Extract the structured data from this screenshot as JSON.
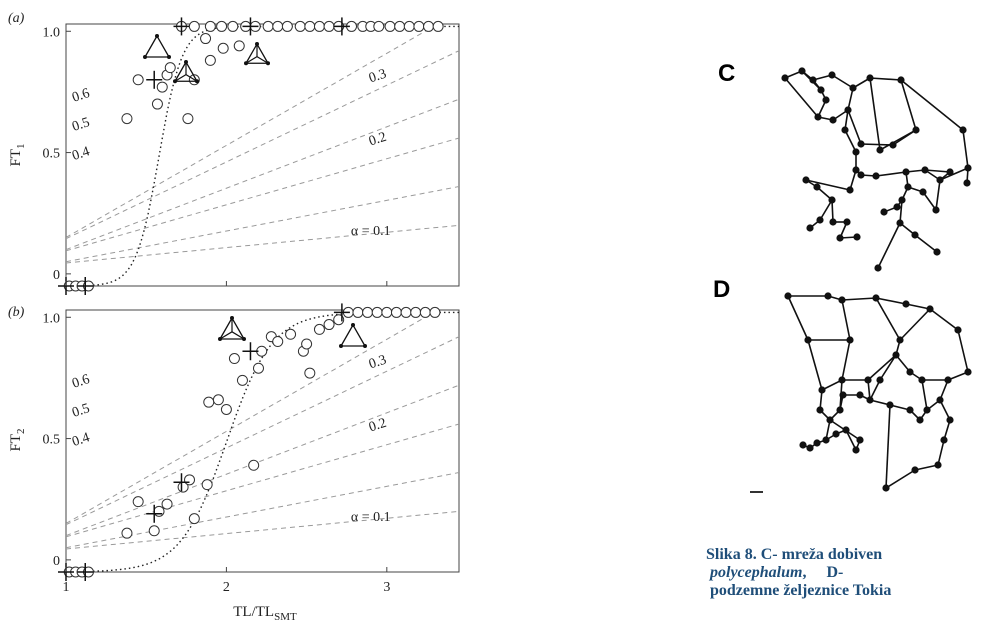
{
  "chart_data": [
    {
      "type": "scatter",
      "panel_label": "(a)",
      "ylabel": "FT",
      "ylabel_sub": "1",
      "yticks": [
        "0",
        "0.5",
        "1.0"
      ],
      "xticks": [
        "1",
        "2",
        "3"
      ],
      "xlim": [
        1.0,
        3.45
      ],
      "ylim": [
        -0.05,
        1.03
      ],
      "alpha_labels": [
        "0.6",
        "0.5",
        "0.4",
        "0.3",
        "0.2",
        "α = 0.1"
      ],
      "alphas": [
        0.6,
        0.5,
        0.4,
        0.3,
        0.2,
        0.1
      ],
      "circles": [
        [
          1.02,
          -0.05
        ],
        [
          1.06,
          -0.05
        ],
        [
          1.1,
          -0.05
        ],
        [
          1.14,
          -0.05
        ],
        [
          1.38,
          0.64
        ],
        [
          1.45,
          0.8
        ],
        [
          1.57,
          0.7
        ],
        [
          1.6,
          0.77
        ],
        [
          1.63,
          0.82
        ],
        [
          1.65,
          0.85
        ],
        [
          1.76,
          0.64
        ],
        [
          1.8,
          0.8
        ],
        [
          1.87,
          0.97
        ],
        [
          1.9,
          0.88
        ],
        [
          1.98,
          0.93
        ],
        [
          2.08,
          0.94
        ],
        [
          1.72,
          1.02
        ],
        [
          1.8,
          1.02
        ],
        [
          1.9,
          1.02
        ],
        [
          1.97,
          1.02
        ],
        [
          2.04,
          1.02
        ],
        [
          2.12,
          1.02
        ],
        [
          2.18,
          1.02
        ],
        [
          2.26,
          1.02
        ],
        [
          2.32,
          1.02
        ],
        [
          2.38,
          1.02
        ],
        [
          2.46,
          1.02
        ],
        [
          2.52,
          1.02
        ],
        [
          2.58,
          1.02
        ],
        [
          2.64,
          1.02
        ],
        [
          2.7,
          1.02
        ],
        [
          2.78,
          1.02
        ],
        [
          2.85,
          1.02
        ],
        [
          2.9,
          1.02
        ],
        [
          2.95,
          1.02
        ],
        [
          3.02,
          1.02
        ],
        [
          3.08,
          1.02
        ],
        [
          3.14,
          1.02
        ],
        [
          3.2,
          1.02
        ],
        [
          3.26,
          1.02
        ],
        [
          3.32,
          1.02
        ]
      ],
      "crosses": [
        [
          1.0,
          -0.05
        ],
        [
          1.12,
          -0.05
        ],
        [
          1.55,
          0.8
        ],
        [
          1.72,
          1.02
        ],
        [
          2.15,
          1.02
        ],
        [
          2.72,
          1.02
        ]
      ],
      "sigmoid": {
        "x0": 1.58,
        "k": 14
      }
    },
    {
      "type": "scatter",
      "panel_label": "(b)",
      "ylabel": "FT",
      "ylabel_sub": "2",
      "yticks": [
        "0",
        "0.5",
        "1.0"
      ],
      "xticks": [
        "1",
        "2",
        "3"
      ],
      "xlim": [
        1.0,
        3.45
      ],
      "ylim": [
        -0.05,
        1.03
      ],
      "xlabel": "TL/TL",
      "xlabel_sub": "SMT",
      "alpha_labels": [
        "0.6",
        "0.5",
        "0.4",
        "0.3",
        "0.2",
        "α = 0.1"
      ],
      "alphas": [
        0.6,
        0.5,
        0.4,
        0.3,
        0.2,
        0.1
      ],
      "circles": [
        [
          1.02,
          -0.05
        ],
        [
          1.06,
          -0.05
        ],
        [
          1.1,
          -0.05
        ],
        [
          1.14,
          -0.05
        ],
        [
          1.38,
          0.11
        ],
        [
          1.45,
          0.24
        ],
        [
          1.55,
          0.12
        ],
        [
          1.58,
          0.2
        ],
        [
          1.63,
          0.23
        ],
        [
          1.73,
          0.3
        ],
        [
          1.77,
          0.33
        ],
        [
          1.8,
          0.17
        ],
        [
          1.88,
          0.31
        ],
        [
          1.89,
          0.65
        ],
        [
          1.95,
          0.66
        ],
        [
          2.0,
          0.62
        ],
        [
          2.05,
          0.83
        ],
        [
          2.1,
          0.74
        ],
        [
          2.17,
          0.39
        ],
        [
          2.2,
          0.79
        ],
        [
          2.22,
          0.86
        ],
        [
          2.28,
          0.92
        ],
        [
          2.32,
          0.9
        ],
        [
          2.4,
          0.93
        ],
        [
          2.48,
          0.86
        ],
        [
          2.5,
          0.89
        ],
        [
          2.52,
          0.77
        ],
        [
          2.58,
          0.95
        ],
        [
          2.64,
          0.97
        ],
        [
          2.7,
          0.99
        ],
        [
          2.76,
          1.02
        ],
        [
          2.82,
          1.02
        ],
        [
          2.88,
          1.02
        ],
        [
          2.94,
          1.02
        ],
        [
          3.0,
          1.02
        ],
        [
          3.06,
          1.02
        ],
        [
          3.12,
          1.02
        ],
        [
          3.18,
          1.02
        ],
        [
          3.24,
          1.02
        ],
        [
          3.3,
          1.02
        ]
      ],
      "crosses": [
        [
          1.0,
          -0.05
        ],
        [
          1.12,
          -0.05
        ],
        [
          1.55,
          0.19
        ],
        [
          1.72,
          0.32
        ],
        [
          2.15,
          0.86
        ],
        [
          2.72,
          1.02
        ]
      ],
      "sigmoid": {
        "x0": 2.0,
        "k": 7
      }
    }
  ],
  "networks": {
    "c_label": "C",
    "d_label": "D",
    "c_nodes": [
      [
        785,
        78
      ],
      [
        802,
        71
      ],
      [
        813,
        80
      ],
      [
        821,
        90
      ],
      [
        832,
        75
      ],
      [
        826,
        100
      ],
      [
        818,
        117
      ],
      [
        833,
        120
      ],
      [
        853,
        88
      ],
      [
        870,
        78
      ],
      [
        901,
        80
      ],
      [
        916,
        130
      ],
      [
        893,
        145
      ],
      [
        861,
        144
      ],
      [
        848,
        110
      ],
      [
        845,
        130
      ],
      [
        856,
        152
      ],
      [
        856,
        170
      ],
      [
        861,
        175
      ],
      [
        876,
        176
      ],
      [
        906,
        172
      ],
      [
        925,
        170
      ],
      [
        940,
        180
      ],
      [
        968,
        168
      ],
      [
        967,
        183
      ],
      [
        950,
        172
      ],
      [
        936,
        210
      ],
      [
        923,
        192
      ],
      [
        908,
        187
      ],
      [
        902,
        200
      ],
      [
        897,
        207
      ],
      [
        884,
        212
      ],
      [
        900,
        223
      ],
      [
        915,
        235
      ],
      [
        937,
        252
      ],
      [
        878,
        268
      ],
      [
        806,
        180
      ],
      [
        817,
        187
      ],
      [
        832,
        200
      ],
      [
        820,
        220
      ],
      [
        810,
        228
      ],
      [
        833,
        222
      ],
      [
        847,
        222
      ],
      [
        840,
        238
      ],
      [
        857,
        237
      ],
      [
        850,
        190
      ],
      [
        880,
        150
      ],
      [
        963,
        130
      ]
    ],
    "c_edges": [
      [
        0,
        1
      ],
      [
        1,
        2
      ],
      [
        2,
        3
      ],
      [
        3,
        5
      ],
      [
        5,
        6
      ],
      [
        6,
        7
      ],
      [
        7,
        14
      ],
      [
        2,
        4
      ],
      [
        4,
        8
      ],
      [
        8,
        9
      ],
      [
        9,
        10
      ],
      [
        10,
        11
      ],
      [
        11,
        12
      ],
      [
        12,
        13
      ],
      [
        13,
        14
      ],
      [
        14,
        8
      ],
      [
        14,
        15
      ],
      [
        15,
        16
      ],
      [
        16,
        17
      ],
      [
        17,
        18
      ],
      [
        18,
        19
      ],
      [
        19,
        20
      ],
      [
        20,
        21
      ],
      [
        21,
        22
      ],
      [
        22,
        23
      ],
      [
        23,
        24
      ],
      [
        21,
        25
      ],
      [
        25,
        22
      ],
      [
        22,
        26
      ],
      [
        26,
        27
      ],
      [
        27,
        28
      ],
      [
        28,
        29
      ],
      [
        29,
        30
      ],
      [
        30,
        31
      ],
      [
        29,
        32
      ],
      [
        32,
        33
      ],
      [
        33,
        34
      ],
      [
        32,
        35
      ],
      [
        17,
        45
      ],
      [
        45,
        36
      ],
      [
        36,
        37
      ],
      [
        37,
        38
      ],
      [
        38,
        39
      ],
      [
        39,
        40
      ],
      [
        38,
        41
      ],
      [
        41,
        42
      ],
      [
        42,
        43
      ],
      [
        43,
        44
      ],
      [
        9,
        46
      ],
      [
        46,
        11
      ],
      [
        10,
        47
      ],
      [
        47,
        23
      ],
      [
        20,
        28
      ],
      [
        3,
        1
      ],
      [
        6,
        0
      ]
    ],
    "d_nodes": [
      [
        788,
        296
      ],
      [
        828,
        296
      ],
      [
        842,
        300
      ],
      [
        876,
        298
      ],
      [
        906,
        304
      ],
      [
        930,
        309
      ],
      [
        958,
        330
      ],
      [
        968,
        372
      ],
      [
        948,
        380
      ],
      [
        922,
        380
      ],
      [
        910,
        372
      ],
      [
        896,
        355
      ],
      [
        868,
        380
      ],
      [
        842,
        380
      ],
      [
        822,
        390
      ],
      [
        820,
        410
      ],
      [
        830,
        420
      ],
      [
        826,
        440
      ],
      [
        836,
        434
      ],
      [
        846,
        430
      ],
      [
        856,
        450
      ],
      [
        860,
        440
      ],
      [
        840,
        410
      ],
      [
        817,
        443
      ],
      [
        810,
        448
      ],
      [
        803,
        445
      ],
      [
        890,
        405
      ],
      [
        910,
        410
      ],
      [
        920,
        420
      ],
      [
        927,
        410
      ],
      [
        940,
        400
      ],
      [
        950,
        420
      ],
      [
        944,
        440
      ],
      [
        938,
        465
      ],
      [
        915,
        470
      ],
      [
        886,
        488
      ],
      [
        870,
        400
      ],
      [
        880,
        380
      ],
      [
        860,
        395
      ],
      [
        843,
        395
      ],
      [
        808,
        340
      ],
      [
        850,
        340
      ],
      [
        900,
        340
      ]
    ],
    "d_edges": [
      [
        0,
        1
      ],
      [
        1,
        2
      ],
      [
        2,
        3
      ],
      [
        3,
        4
      ],
      [
        4,
        5
      ],
      [
        5,
        6
      ],
      [
        6,
        7
      ],
      [
        7,
        8
      ],
      [
        8,
        9
      ],
      [
        9,
        10
      ],
      [
        10,
        11
      ],
      [
        11,
        12
      ],
      [
        12,
        13
      ],
      [
        13,
        14
      ],
      [
        14,
        15
      ],
      [
        15,
        16
      ],
      [
        16,
        17
      ],
      [
        17,
        18
      ],
      [
        18,
        19
      ],
      [
        19,
        20
      ],
      [
        20,
        21
      ],
      [
        21,
        16
      ],
      [
        16,
        22
      ],
      [
        22,
        13
      ],
      [
        17,
        23
      ],
      [
        23,
        24
      ],
      [
        24,
        25
      ],
      [
        12,
        36
      ],
      [
        36,
        37
      ],
      [
        37,
        11
      ],
      [
        36,
        38
      ],
      [
        38,
        39
      ],
      [
        39,
        22
      ],
      [
        36,
        26
      ],
      [
        26,
        27
      ],
      [
        27,
        28
      ],
      [
        28,
        29
      ],
      [
        29,
        30
      ],
      [
        30,
        31
      ],
      [
        31,
        32
      ],
      [
        32,
        33
      ],
      [
        33,
        34
      ],
      [
        34,
        35
      ],
      [
        35,
        26
      ],
      [
        0,
        40
      ],
      [
        40,
        14
      ],
      [
        40,
        41
      ],
      [
        41,
        2
      ],
      [
        41,
        13
      ],
      [
        3,
        42
      ],
      [
        42,
        11
      ],
      [
        42,
        5
      ],
      [
        8,
        30
      ],
      [
        9,
        29
      ]
    ]
  },
  "caption": {
    "line1": "Slika 8. C- mreža dobiven",
    "line2_italic": "polycephalum",
    "line2_rest": ",     D-",
    "line3": "podzemne željeznice Tokia"
  }
}
